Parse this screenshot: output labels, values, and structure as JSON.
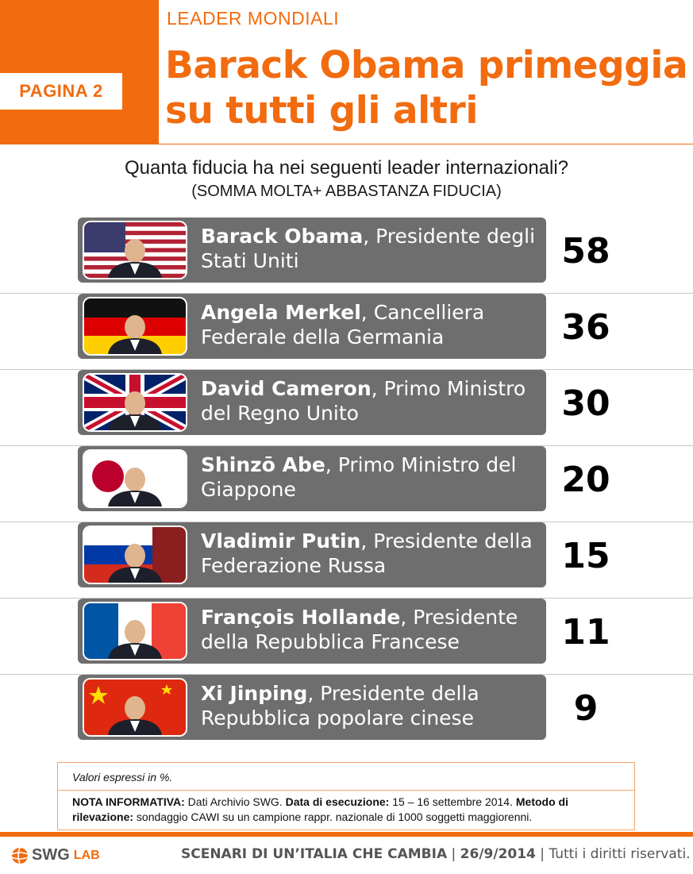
{
  "header": {
    "page_label": "PAGINA 2",
    "kicker": "LEADER MONDIALI",
    "title_line1": "Barack Obama primeggia",
    "title_line2": "su tutti gli altri",
    "accent_color": "#f26b0f"
  },
  "question": {
    "text": "Quanta fiducia ha nei seguenti leader internazionali?",
    "subtext": "(SOMMA MOLTA+ ABBASTANZA FIDUCIA)"
  },
  "chart_data": {
    "type": "table",
    "categories": [
      "Barack Obama",
      "Angela Merkel",
      "David Cameron",
      "Shinzō Abe",
      "Vladimir Putin",
      "François Hollande",
      "Xi Jinping"
    ],
    "values": [
      58,
      36,
      30,
      20,
      15,
      11,
      9
    ],
    "rows": [
      {
        "name": "Barack Obama",
        "role": ", Presidente degli Stati Uniti",
        "value": "58",
        "photo_icon": "usa-flag-portrait"
      },
      {
        "name": "Angela Merkel",
        "role": ", Cancelliera Federale della Germania",
        "value": "36",
        "photo_icon": "germany-flag-portrait"
      },
      {
        "name": "David Cameron",
        "role": ", Primo Ministro del Regno Unito",
        "value": "30",
        "photo_icon": "uk-flag-portrait"
      },
      {
        "name": "Shinzō  Abe",
        "role": ", Primo Ministro del Giappone",
        "value": "20",
        "photo_icon": "japan-flag-portrait"
      },
      {
        "name": "Vladimir Putin",
        "role": ", Presidente della Federazione Russa",
        "value": "15",
        "photo_icon": "russia-flag-portrait"
      },
      {
        "name": "François Hollande",
        "role": ", Presidente della Repubblica Francese",
        "value": "11",
        "photo_icon": "france-flag-portrait"
      },
      {
        "name": "Xi Jinping",
        "role": ", Presidente della Repubblica popolare cinese",
        "value": "9",
        "photo_icon": "china-flag-portrait"
      }
    ]
  },
  "notes": {
    "units": "Valori espressi in %.",
    "nota_label": "NOTA INFORMATIVA:",
    "nota_text": " Dati Archivio SWG. ",
    "data_label": "Data di esecuzione:",
    "data_text": " 15 – 16 settembre 2014. ",
    "metodo_label": "Metodo di rilevazione:",
    "metodo_text": " sondaggio CAWI su un campione rappr. nazionale di 1000 soggetti maggiorenni."
  },
  "footer": {
    "brand": "SWG",
    "brand_suffix": "LAB",
    "title": "SCENARI DI UN’ITALIA CHE CAMBIA",
    "sep1": " | ",
    "date": "26/9/2014",
    "sep2": " | ",
    "rights": "Tutti i diritti riservati."
  }
}
